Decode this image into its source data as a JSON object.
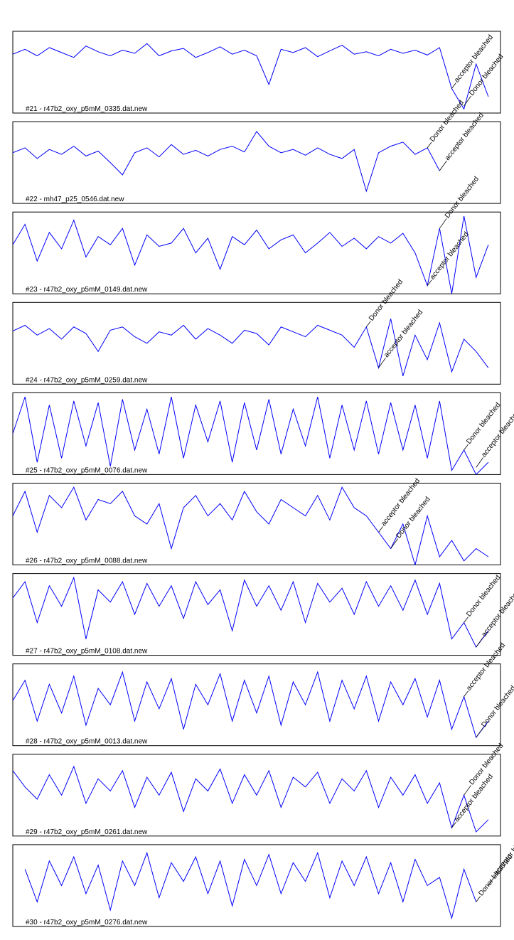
{
  "chart_data": [
    {
      "type": "line",
      "title": "#21 - r47b2_oxy_p5mM_0335.dat.new",
      "color": "#0000ff",
      "xlim": [
        0,
        40
      ],
      "ylim": [
        0,
        1
      ],
      "values": [
        0.72,
        0.78,
        0.7,
        0.8,
        0.74,
        0.68,
        0.82,
        0.75,
        0.7,
        0.77,
        0.73,
        0.85,
        0.7,
        0.76,
        0.79,
        0.68,
        0.74,
        0.81,
        0.72,
        0.77,
        0.7,
        0.35,
        0.78,
        0.74,
        0.8,
        0.69,
        0.76,
        0.83,
        0.72,
        0.75,
        0.7,
        0.78,
        0.73,
        0.77,
        0.71,
        0.8,
        0.3,
        0.05,
        0.6,
        0.2
      ],
      "annotations": [
        {
          "text": "acceptor bleached",
          "x": 36
        },
        {
          "text": "Donor bleached",
          "x": 37
        }
      ]
    },
    {
      "type": "line",
      "title": "#22 - mh47_p25_0546.dat.new",
      "color": "#0000ff",
      "xlim": [
        0,
        40
      ],
      "ylim": [
        0,
        1
      ],
      "values": [
        0.62,
        0.68,
        0.55,
        0.66,
        0.6,
        0.7,
        0.58,
        0.64,
        0.5,
        0.35,
        0.62,
        0.68,
        0.57,
        0.72,
        0.6,
        0.65,
        0.58,
        0.66,
        0.7,
        0.63,
        0.88,
        0.7,
        0.62,
        0.66,
        0.59,
        0.68,
        0.6,
        0.55,
        0.66,
        0.15,
        0.62,
        0.7,
        0.75,
        0.6,
        0.68,
        0.4
      ],
      "annotations": [
        {
          "text": "Donor bleached",
          "x": 34
        },
        {
          "text": "acceptor bleached",
          "x": 35
        }
      ]
    },
    {
      "type": "line",
      "title": "#23 - r47b2_oxy_p5mM_0149.dat.new",
      "color": "#0000ff",
      "xlim": [
        0,
        40
      ],
      "ylim": [
        0,
        1
      ],
      "values": [
        0.6,
        0.85,
        0.4,
        0.75,
        0.55,
        0.9,
        0.45,
        0.7,
        0.6,
        0.8,
        0.35,
        0.72,
        0.58,
        0.62,
        0.8,
        0.5,
        0.68,
        0.3,
        0.7,
        0.6,
        0.78,
        0.55,
        0.66,
        0.72,
        0.5,
        0.62,
        0.75,
        0.58,
        0.68,
        0.55,
        0.7,
        0.62,
        0.74,
        0.5,
        0.1,
        0.8,
        0.0,
        0.95,
        0.2,
        0.6
      ],
      "annotations": [
        {
          "text": "acceptor bleached",
          "x": 34
        },
        {
          "text": "Donor bleached",
          "x": 35
        }
      ]
    },
    {
      "type": "line",
      "title": "#24 - r47b2_oxy_p5mM_0259.dat.new",
      "color": "#0000ff",
      "xlim": [
        0,
        40
      ],
      "ylim": [
        0,
        1
      ],
      "values": [
        0.65,
        0.72,
        0.6,
        0.68,
        0.55,
        0.7,
        0.62,
        0.4,
        0.66,
        0.7,
        0.58,
        0.5,
        0.64,
        0.6,
        0.72,
        0.55,
        0.68,
        0.6,
        0.5,
        0.66,
        0.62,
        0.48,
        0.7,
        0.64,
        0.58,
        0.72,
        0.66,
        0.6,
        0.45,
        0.7,
        0.2,
        0.8,
        0.1,
        0.6,
        0.3,
        0.75,
        0.15,
        0.55,
        0.4,
        0.2
      ],
      "annotations": [
        {
          "text": "Donor bleached",
          "x": 29
        },
        {
          "text": "acceptor bleached",
          "x": 30
        }
      ]
    },
    {
      "type": "line",
      "title": "#25 - r47b2_oxy_p5mM_0076.dat.new",
      "color": "#0000ff",
      "xlim": [
        0,
        40
      ],
      "ylim": [
        0,
        1
      ],
      "values": [
        0.5,
        0.95,
        0.15,
        0.85,
        0.2,
        0.9,
        0.35,
        0.88,
        0.1,
        0.92,
        0.3,
        0.8,
        0.25,
        0.95,
        0.2,
        0.85,
        0.4,
        0.9,
        0.15,
        0.88,
        0.3,
        0.92,
        0.25,
        0.8,
        0.35,
        0.95,
        0.2,
        0.85,
        0.3,
        0.9,
        0.25,
        0.88,
        0.3,
        0.85,
        0.2,
        0.9,
        0.05,
        0.3,
        0.0,
        0.15
      ],
      "annotations": [
        {
          "text": "Donor bleached",
          "x": 37
        },
        {
          "text": "acceptor bleached",
          "x": 38
        }
      ]
    },
    {
      "type": "line",
      "title": "#26 - r47b2_oxy_p5mM_0088.dat.new",
      "color": "#0000ff",
      "xlim": [
        0,
        40
      ],
      "ylim": [
        0,
        1
      ],
      "values": [
        0.6,
        0.9,
        0.4,
        0.85,
        0.7,
        0.95,
        0.55,
        0.8,
        0.75,
        0.9,
        0.6,
        0.5,
        0.75,
        0.2,
        0.7,
        0.85,
        0.6,
        0.75,
        0.55,
        0.9,
        0.65,
        0.5,
        0.8,
        0.7,
        0.6,
        0.85,
        0.55,
        0.95,
        0.7,
        0.6,
        0.4,
        0.2,
        0.5,
        0.0,
        0.6,
        0.1,
        0.3,
        0.05,
        0.2,
        0.1
      ],
      "annotations": [
        {
          "text": "acceptor bleached",
          "x": 30
        },
        {
          "text": "Donor bleached",
          "x": 31
        }
      ]
    },
    {
      "type": "line",
      "title": "#27 - r47b2_oxy_p5mM_0108.dat.new",
      "color": "#0000ff",
      "xlim": [
        0,
        40
      ],
      "ylim": [
        0,
        1
      ],
      "values": [
        0.7,
        0.9,
        0.4,
        0.85,
        0.6,
        0.95,
        0.2,
        0.8,
        0.65,
        0.9,
        0.5,
        0.88,
        0.6,
        0.85,
        0.45,
        0.9,
        0.62,
        0.8,
        0.3,
        0.92,
        0.6,
        0.85,
        0.55,
        0.9,
        0.4,
        0.88,
        0.65,
        0.82,
        0.5,
        0.9,
        0.6,
        0.85,
        0.55,
        0.92,
        0.5,
        0.88,
        0.2,
        0.4,
        0.1,
        0.3
      ],
      "annotations": [
        {
          "text": "Donor bleached",
          "x": 37
        },
        {
          "text": "acceptor bleached",
          "x": 38
        }
      ]
    },
    {
      "type": "line",
      "title": "#28 - r47b2_oxy_p5mM_0013.dat.new",
      "color": "#0000ff",
      "xlim": [
        0,
        40
      ],
      "ylim": [
        0,
        1
      ],
      "values": [
        0.55,
        0.8,
        0.3,
        0.75,
        0.4,
        0.85,
        0.25,
        0.7,
        0.5,
        0.9,
        0.3,
        0.78,
        0.45,
        0.82,
        0.2,
        0.75,
        0.5,
        0.88,
        0.3,
        0.8,
        0.4,
        0.85,
        0.25,
        0.78,
        0.5,
        0.9,
        0.3,
        0.8,
        0.45,
        0.85,
        0.3,
        0.78,
        0.5,
        0.82,
        0.35,
        0.8,
        0.2,
        0.6,
        0.1,
        0.3
      ],
      "annotations": [
        {
          "text": "acceptor bleached",
          "x": 37
        },
        {
          "text": "Donor bleached",
          "x": 38
        }
      ]
    },
    {
      "type": "line",
      "title": "#29 - r47b2_oxy_p5mM_0261.dat.new",
      "color": "#0000ff",
      "xlim": [
        0,
        40
      ],
      "ylim": [
        0,
        1
      ],
      "values": [
        0.8,
        0.6,
        0.45,
        0.75,
        0.5,
        0.85,
        0.4,
        0.7,
        0.55,
        0.8,
        0.35,
        0.72,
        0.5,
        0.78,
        0.3,
        0.7,
        0.55,
        0.82,
        0.4,
        0.75,
        0.5,
        0.8,
        0.35,
        0.72,
        0.6,
        0.78,
        0.4,
        0.7,
        0.55,
        0.8,
        0.35,
        0.72,
        0.5,
        0.75,
        0.4,
        0.65,
        0.1,
        0.5,
        0.05,
        0.2
      ],
      "annotations": [
        {
          "text": "acceptor bleached",
          "x": 36
        },
        {
          "text": "Donor bleached",
          "x": 37
        }
      ]
    },
    {
      "type": "line",
      "title": "#30 - r47b2_oxy_p5mM_0276.dat.new",
      "color": "#0000ff",
      "xlim": [
        0,
        40
      ],
      "ylim": [
        0,
        1
      ],
      "values": [
        null,
        0.7,
        0.3,
        0.8,
        0.5,
        0.85,
        0.4,
        0.75,
        0.2,
        0.8,
        0.5,
        0.9,
        0.35,
        0.78,
        0.55,
        0.85,
        0.4,
        0.8,
        0.25,
        0.82,
        0.5,
        0.88,
        0.4,
        0.78,
        0.55,
        0.9,
        0.35,
        0.8,
        0.5,
        0.85,
        0.4,
        0.78,
        0.3,
        0.82,
        0.5,
        0.6,
        0.1,
        0.7,
        0.3,
        null
      ],
      "annotations": [
        {
          "text": "Donor bleached",
          "x": 38
        },
        {
          "text": "acceptor bleached",
          "x": 39
        }
      ]
    }
  ]
}
